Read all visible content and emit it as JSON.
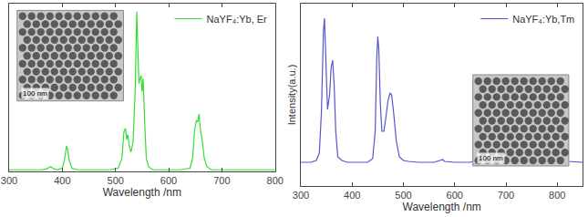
{
  "chart_data": [
    {
      "type": "line",
      "x_label": "Wavelength /nm",
      "x": [
        300,
        320,
        340,
        360,
        370,
        378,
        382,
        390,
        400,
        404,
        408,
        410,
        413,
        418,
        430,
        460,
        490,
        505,
        512,
        516,
        519,
        521,
        523,
        526,
        529,
        533,
        537,
        540,
        542,
        544,
        546,
        548,
        550,
        552,
        555,
        558,
        562,
        570,
        590,
        620,
        640,
        645,
        649,
        652,
        655,
        657,
        660,
        663,
        667,
        672,
        680,
        700,
        740,
        780,
        800
      ],
      "series": [
        {
          "name": "NaYF₄:Yb, Er",
          "color": "#33dd33",
          "values": [
            0.01,
            0.01,
            0.01,
            0.01,
            0.015,
            0.03,
            0.02,
            0.01,
            0.02,
            0.07,
            0.16,
            0.14,
            0.07,
            0.02,
            0.01,
            0.01,
            0.01,
            0.02,
            0.08,
            0.25,
            0.27,
            0.2,
            0.23,
            0.16,
            0.12,
            0.18,
            0.5,
            1.0,
            0.75,
            0.55,
            0.58,
            0.6,
            0.5,
            0.58,
            0.3,
            0.08,
            0.03,
            0.01,
            0.01,
            0.01,
            0.02,
            0.08,
            0.26,
            0.32,
            0.31,
            0.36,
            0.25,
            0.2,
            0.08,
            0.03,
            0.01,
            0.01,
            0.01,
            0.01,
            0.01
          ]
        }
      ],
      "xlim": [
        300,
        800
      ],
      "xticks": [
        300,
        400,
        500,
        600,
        700,
        800
      ],
      "ylim": [
        0,
        1.05
      ],
      "tick_labels": "x",
      "grid": false,
      "legend": "upper right",
      "annotations": [
        "100 nm"
      ]
    },
    {
      "type": "line",
      "x_label": "Wavelength /nm",
      "y_label": "Intensity(a.u.)",
      "x": [
        300,
        320,
        330,
        336,
        340,
        344,
        346,
        349,
        352,
        356,
        359,
        362,
        365,
        368,
        372,
        380,
        390,
        410,
        430,
        440,
        445,
        448,
        450,
        452,
        455,
        458,
        462,
        466,
        470,
        474,
        477,
        481,
        486,
        492,
        500,
        510,
        530,
        560,
        574,
        577,
        580,
        600,
        630,
        640,
        644,
        648,
        655,
        680,
        720,
        760,
        780,
        790,
        797,
        800,
        806,
        812,
        820,
        850
      ],
      "series": [
        {
          "name": "NaYF₄:Yb,Tm",
          "color": "#5555cc",
          "values": [
            0.13,
            0.13,
            0.14,
            0.18,
            0.4,
            0.85,
            0.92,
            0.7,
            0.42,
            0.5,
            0.65,
            0.69,
            0.55,
            0.3,
            0.16,
            0.14,
            0.13,
            0.13,
            0.13,
            0.15,
            0.3,
            0.7,
            0.82,
            0.75,
            0.45,
            0.3,
            0.3,
            0.38,
            0.47,
            0.51,
            0.5,
            0.4,
            0.25,
            0.16,
            0.14,
            0.135,
            0.13,
            0.13,
            0.14,
            0.145,
            0.135,
            0.13,
            0.13,
            0.14,
            0.17,
            0.16,
            0.135,
            0.13,
            0.13,
            0.13,
            0.14,
            0.17,
            0.2,
            0.2,
            0.18,
            0.15,
            0.135,
            0.13
          ]
        }
      ],
      "xlim": [
        300,
        850
      ],
      "xticks": [
        300,
        400,
        500,
        600,
        700,
        800
      ],
      "ylim": [
        0,
        1
      ],
      "tick_labels": "x",
      "grid": false,
      "legend": "upper right",
      "annotations": [
        "100 nm"
      ]
    }
  ]
}
